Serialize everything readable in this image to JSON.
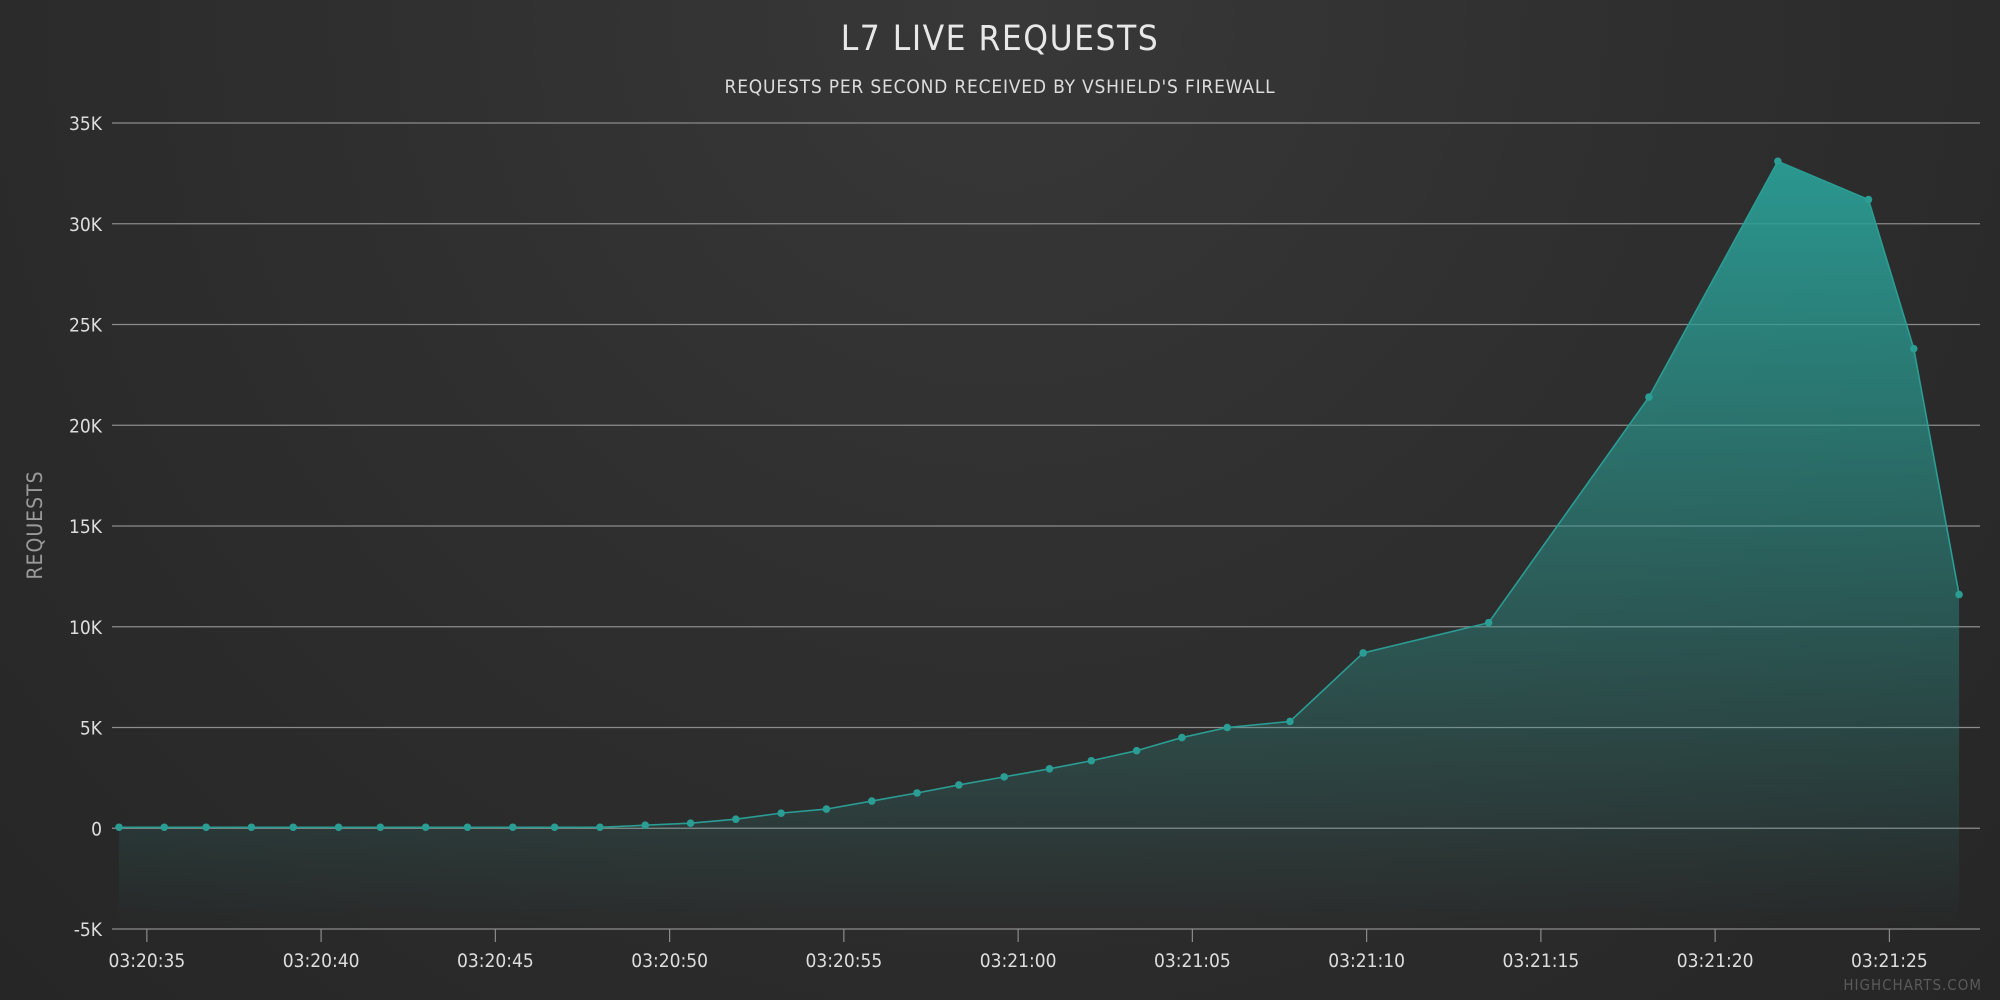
{
  "chart": {
    "title": "L7 LIVE REQUESTS",
    "subtitle": "REQUESTS PER SECOND RECEIVED BY VSHIELD'S FIREWALL",
    "credits": "HIGHCHARTS.COM",
    "colors": {
      "series": "#2a9d94",
      "background": "#2b2b2b",
      "grid": "#8c8c8c"
    }
  },
  "chart_data": {
    "type": "area",
    "title": "L7 LIVE REQUESTS",
    "subtitle": "REQUESTS PER SECOND RECEIVED BY VSHIELD'S FIREWALL",
    "xlabel": "",
    "ylabel": "REQUESTS",
    "x_tick_labels": [
      "03:20:35",
      "03:20:40",
      "03:20:45",
      "03:20:50",
      "03:20:55",
      "03:21:00",
      "03:21:05",
      "03:21:10",
      "03:21:15",
      "03:21:20",
      "03:21:25"
    ],
    "y_ticks": [
      -5000,
      0,
      5000,
      10000,
      15000,
      20000,
      25000,
      30000,
      35000
    ],
    "y_tick_labels": [
      "-5K",
      "0",
      "5K",
      "10K",
      "15K",
      "20K",
      "25K",
      "30K",
      "35K"
    ],
    "ylim": [
      -5000,
      35000
    ],
    "xlim": [
      "03:20:34",
      "03:21:27.6"
    ],
    "grid": true,
    "legend": "none",
    "series": [
      {
        "x": [
          "03:20:34.2",
          "03:20:35.5",
          "03:20:36.7",
          "03:20:38.0",
          "03:20:39.2",
          "03:20:40.5",
          "03:20:41.7",
          "03:20:43.0",
          "03:20:44.2",
          "03:20:45.5",
          "03:20:46.7",
          "03:20:48.0",
          "03:20:49.3",
          "03:20:50.6",
          "03:20:51.9",
          "03:20:53.2",
          "03:20:54.5",
          "03:20:55.8",
          "03:20:57.1",
          "03:20:58.3",
          "03:20:59.6",
          "03:21:00.9",
          "03:21:02.1",
          "03:21:03.4",
          "03:21:04.7",
          "03:21:06.0",
          "03:21:07.8",
          "03:21:09.9",
          "03:21:13.5",
          "03:21:18.1",
          "03:21:21.8",
          "03:21:24.4",
          "03:21:25.7",
          "03:21:27.0"
        ],
        "values": [
          50,
          50,
          50,
          50,
          50,
          50,
          50,
          50,
          50,
          50,
          50,
          50,
          150,
          250,
          450,
          750,
          950,
          1350,
          1750,
          2150,
          2550,
          2950,
          3350,
          3850,
          4500,
          5000,
          5300,
          8700,
          10200,
          21400,
          33100,
          31200,
          23800,
          11600
        ]
      }
    ]
  }
}
